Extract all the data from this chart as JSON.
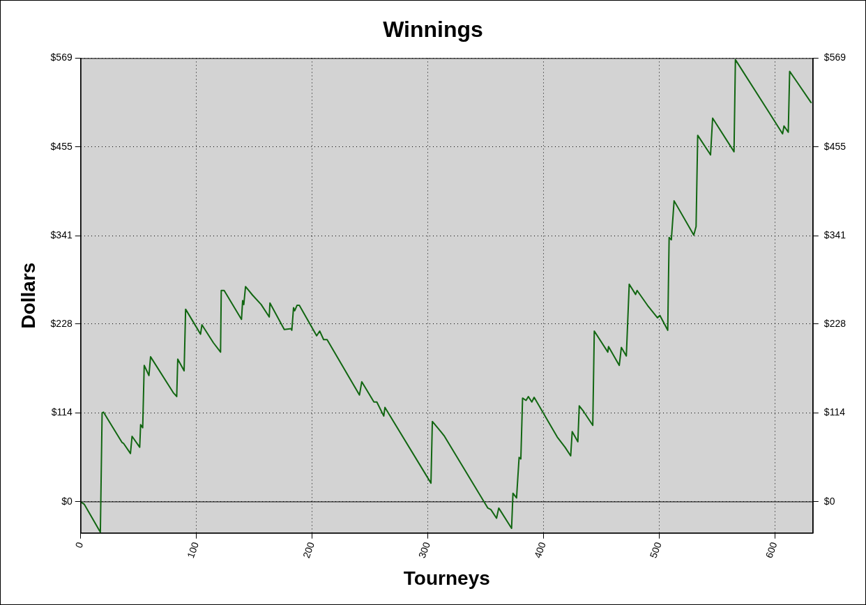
{
  "chart_data": {
    "type": "line",
    "title": "Winnings",
    "xlabel": "Tourneys",
    "ylabel": "Dollars",
    "x": [
      0,
      3,
      17,
      18.5,
      19.7,
      25,
      35.8,
      37,
      43,
      44.4,
      51,
      51.8,
      53.6,
      54.9,
      59,
      60.4,
      80,
      83,
      83.9,
      89.4,
      90.7,
      100,
      103.6,
      104.8,
      114.7,
      120.9,
      121.5,
      124,
      139,
      140,
      141,
      142.5,
      148.6,
      156,
      163,
      163.6,
      176,
      182,
      182.5,
      184,
      185,
      187,
      189,
      204,
      206.6,
      210,
      213,
      241,
      243,
      253.5,
      256,
      262,
      263,
      302.8,
      304,
      311.4,
      314.5,
      352,
      354.6,
      359.5,
      361.4,
      372.5,
      373.7,
      376.8,
      379,
      380.5,
      382,
      385,
      387,
      390,
      392,
      412,
      418.7,
      423.6,
      424.9,
      429.8,
      431,
      434.7,
      442.7,
      444,
      455.7,
      456.3,
      465.6,
      467.4,
      471.7,
      474.2,
      479.7,
      481,
      490,
      498.6,
      500.7,
      507.5,
      508.7,
      510.6,
      513,
      530,
      532,
      533.4,
      544.5,
      546.3,
      564.8,
      566,
      594.4,
      606.8,
      608,
      611.7,
      612.9,
      619,
      631.4
    ],
    "series": [
      {
        "color": "#116611",
        "values": [
          0,
          -3,
          -39,
          114,
          115,
          102,
          76,
          75,
          62,
          84,
          70,
          99,
          95,
          175,
          162,
          186,
          140,
          135,
          183,
          168,
          247,
          224,
          215,
          227,
          204,
          192,
          271,
          271,
          234,
          258,
          253,
          276,
          265,
          253,
          237,
          255,
          221,
          222,
          220,
          249,
          245,
          252,
          252,
          213,
          219,
          208,
          208,
          137,
          154,
          128,
          128,
          110,
          121,
          24,
          103,
          90,
          84,
          -8,
          -10,
          -21,
          -8,
          -34,
          11,
          5,
          57,
          55,
          133,
          130,
          135,
          128,
          134,
          83,
          70,
          59,
          90,
          77,
          123,
          116,
          98,
          219,
          192,
          199,
          175,
          198,
          187,
          279,
          266,
          271,
          252,
          236,
          239,
          220,
          339,
          336,
          386,
          342,
          353,
          470,
          445,
          492,
          449,
          567,
          501,
          472,
          482,
          474,
          552,
          539,
          512
        ]
      }
    ],
    "xlim": [
      0,
      633
    ],
    "xticks": [
      0,
      100,
      200,
      300,
      400,
      500,
      600
    ],
    "ylim": [
      -40,
      569
    ],
    "yticks": [
      {
        "value": 0,
        "label": "$0"
      },
      {
        "value": 114,
        "label": "$114"
      },
      {
        "value": 228,
        "label": "$228"
      },
      {
        "value": 341,
        "label": "$341"
      },
      {
        "value": 455,
        "label": "$455"
      },
      {
        "value": 569,
        "label": "$569"
      }
    ],
    "y2lim": [
      -40,
      569
    ],
    "y2ticks": [
      {
        "value": 0,
        "label": "$0"
      },
      {
        "value": 114,
        "label": "$114"
      },
      {
        "value": 228,
        "label": "$228"
      },
      {
        "value": 341,
        "label": "$341"
      },
      {
        "value": 455,
        "label": "$455"
      },
      {
        "value": 569,
        "label": "$569"
      }
    ],
    "ref_lines": [
      {
        "axis": "y",
        "value": 0,
        "color": "#000000",
        "line_style": "solid"
      }
    ],
    "grid": true,
    "legend": false,
    "marker": "none",
    "line_style": "solid"
  }
}
